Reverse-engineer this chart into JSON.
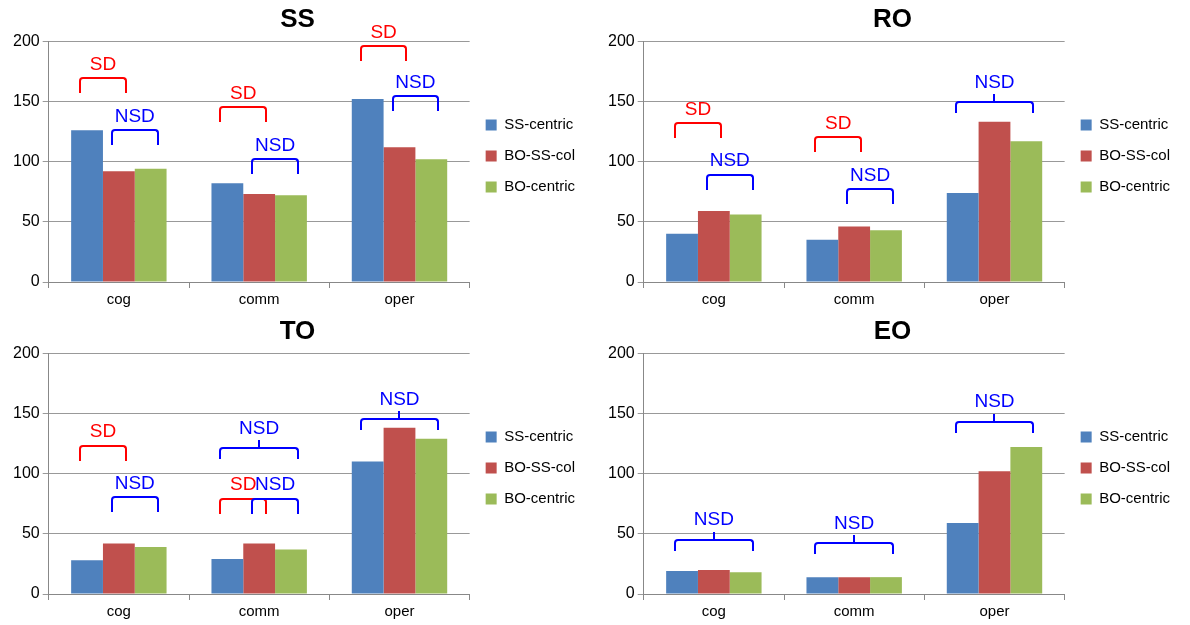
{
  "chart_data": [
    {
      "type": "bar",
      "title": "SS",
      "categories": [
        "cog",
        "comm",
        "oper"
      ],
      "series": [
        {
          "name": "SS-centric",
          "color": "#4f81bd",
          "values": [
            126,
            82,
            152
          ]
        },
        {
          "name": "BO-SS-col",
          "color": "#c0504d",
          "values": [
            92,
            73,
            112
          ]
        },
        {
          "name": "BO-centric",
          "color": "#9bbb59",
          "values": [
            94,
            72,
            102
          ]
        }
      ],
      "ylim": [
        0,
        200
      ],
      "yticks": [
        0,
        50,
        100,
        150,
        200
      ],
      "grid": "y",
      "legend": "right",
      "annotations": [
        "SD",
        "NSD",
        "SD",
        "NSD",
        "SD",
        "NSD"
      ]
    },
    {
      "type": "bar",
      "title": "RO",
      "categories": [
        "cog",
        "comm",
        "oper"
      ],
      "series": [
        {
          "name": "SS-centric",
          "color": "#4f81bd",
          "values": [
            40,
            35,
            74
          ]
        },
        {
          "name": "BO-SS-col",
          "color": "#c0504d",
          "values": [
            59,
            46,
            133
          ]
        },
        {
          "name": "BO-centric",
          "color": "#9bbb59",
          "values": [
            56,
            43,
            117
          ]
        }
      ],
      "ylim": [
        0,
        200
      ],
      "yticks": [
        0,
        50,
        100,
        150,
        200
      ],
      "grid": "y",
      "legend": "right",
      "annotations": [
        "SD",
        "NSD",
        "SD",
        "NSD",
        "NSD"
      ]
    },
    {
      "type": "bar",
      "title": "TO",
      "categories": [
        "cog",
        "comm",
        "oper"
      ],
      "series": [
        {
          "name": "SS-centric",
          "color": "#4f81bd",
          "values": [
            28,
            29,
            110
          ]
        },
        {
          "name": "BO-SS-col",
          "color": "#c0504d",
          "values": [
            42,
            42,
            138
          ]
        },
        {
          "name": "BO-centric",
          "color": "#9bbb59",
          "values": [
            39,
            37,
            129
          ]
        }
      ],
      "ylim": [
        0,
        200
      ],
      "yticks": [
        0,
        50,
        100,
        150,
        200
      ],
      "grid": "y",
      "legend": "right",
      "annotations": [
        "SD",
        "NSD",
        "NSD",
        "SD",
        "NSD",
        "NSD"
      ]
    },
    {
      "type": "bar",
      "title": "EO",
      "categories": [
        "cog",
        "comm",
        "oper"
      ],
      "series": [
        {
          "name": "SS-centric",
          "color": "#4f81bd",
          "values": [
            19,
            14,
            59
          ]
        },
        {
          "name": "BO-SS-col",
          "color": "#c0504d",
          "values": [
            20,
            14,
            102
          ]
        },
        {
          "name": "BO-centric",
          "color": "#9bbb59",
          "values": [
            18,
            14,
            122
          ]
        }
      ],
      "ylim": [
        0,
        200
      ],
      "yticks": [
        0,
        50,
        100,
        150,
        200
      ],
      "grid": "y",
      "legend": "right",
      "annotations": [
        "NSD",
        "NSD",
        "NSD"
      ]
    }
  ]
}
